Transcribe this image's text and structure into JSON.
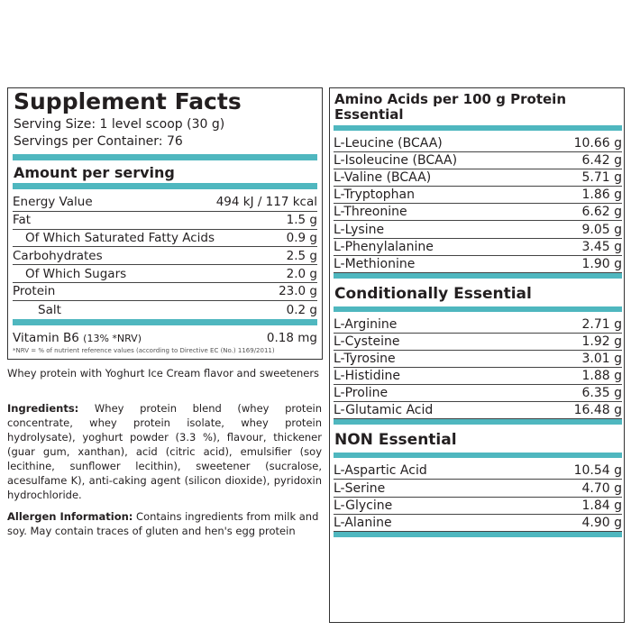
{
  "supplement_facts": {
    "title": "Supplement Facts",
    "serving_size": "Serving Size: 1 level scoop (30 g)",
    "servings_per_container": "Servings per Container: 76",
    "amount_header": "Amount per serving",
    "rows": [
      {
        "label": "Energy Value",
        "value": "494 kJ / 117 kcal"
      },
      {
        "label": "Fat",
        "value": "1.5 g"
      },
      {
        "label": "Of Which Saturated Fatty Acids",
        "value": "0.9 g"
      },
      {
        "label": "Carbohydrates",
        "value": "2.5 g"
      },
      {
        "label": "Of Which Sugars",
        "value": "2.0 g"
      },
      {
        "label": "Protein",
        "value": "23.0 g"
      },
      {
        "label": "Salt",
        "value": "0.2 g"
      }
    ],
    "vitamin": {
      "label": "Vitamin B6",
      "nrv": "(13% *NRV)",
      "value": "0.18 mg"
    },
    "footnote": "*NRV = % of nutrient reference values (according to Directive EC (No.) 1169/2011)"
  },
  "description": "Whey protein with Yoghurt Ice Cream flavor and sweeteners",
  "ingredients": {
    "label": "Ingredients:",
    "text": "Whey protein blend (whey protein concentrate, whey protein isolate, whey protein hydrolysate), yoghurt powder (3.3 %), flavour, thickener (guar gum, xanthan), acid (citric acid), emulsifier (soy lecithine, sunflower lecithin), sweetener (sucralose, acesulfame K), anti-caking agent (silicon dioxide), pyridoxin hydrochloride."
  },
  "allergen": {
    "label": "Allergen Information:",
    "text": "Contains ingredients from milk and soy. May contain traces of gluten and hen's egg protein"
  },
  "amino_acids": {
    "title": "Amino Acids per 100 g Protein",
    "groups": [
      {
        "name": "Essential",
        "rows": [
          {
            "label": "L-Leucine (BCAA)",
            "value": "10.66 g"
          },
          {
            "label": "L-Isoleucine (BCAA)",
            "value": "6.42 g"
          },
          {
            "label": "L-Valine (BCAA)",
            "value": "5.71 g"
          },
          {
            "label": "L-Tryptophan",
            "value": "1.86 g"
          },
          {
            "label": "L-Threonine",
            "value": "6.62 g"
          },
          {
            "label": "L-Lysine",
            "value": "9.05 g"
          },
          {
            "label": "L-Phenylalanine",
            "value": "3.45 g"
          },
          {
            "label": "L-Methionine",
            "value": "1.90 g"
          }
        ]
      },
      {
        "name": "Conditionally Essential",
        "rows": [
          {
            "label": "L-Arginine",
            "value": "2.71 g"
          },
          {
            "label": "L-Cysteine",
            "value": "1.92 g"
          },
          {
            "label": "L-Tyrosine",
            "value": "3.01 g"
          },
          {
            "label": "L-Histidine",
            "value": "1.88 g"
          },
          {
            "label": "L-Proline",
            "value": "6.35 g"
          },
          {
            "label": "L-Glutamic Acid",
            "value": "16.48 g"
          }
        ]
      },
      {
        "name": "NON Essential",
        "rows": [
          {
            "label": "L-Aspartic Acid",
            "value": "10.54 g"
          },
          {
            "label": "L-Serine",
            "value": "4.70 g"
          },
          {
            "label": "L-Glycine",
            "value": "1.84 g"
          },
          {
            "label": "L-Alanine",
            "value": "4.90 g"
          }
        ]
      }
    ]
  }
}
